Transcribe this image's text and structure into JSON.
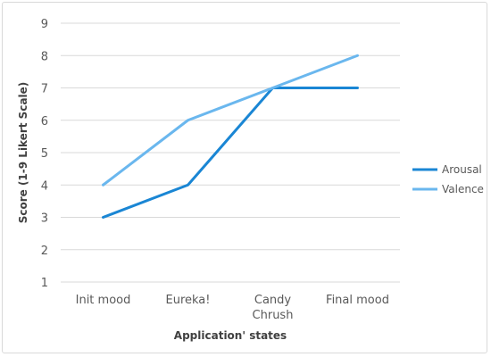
{
  "chart_data": {
    "type": "line",
    "categories": [
      "Init mood",
      "Eureka!",
      "Candy Chrush",
      "Final mood"
    ],
    "series": [
      {
        "name": "Arousal",
        "values": [
          3,
          4,
          7,
          7
        ],
        "color": "#1a86d4"
      },
      {
        "name": "Valence",
        "values": [
          4,
          6,
          7,
          8
        ],
        "color": "#6ab7ee"
      }
    ],
    "ylim": [
      1,
      9
    ],
    "yticks": [
      1,
      2,
      3,
      4,
      5,
      6,
      7,
      8,
      9
    ],
    "xlabel": "Application' states",
    "ylabel": "Score (1-9 Likert Scale)",
    "grid": true,
    "legend_position": "right"
  }
}
